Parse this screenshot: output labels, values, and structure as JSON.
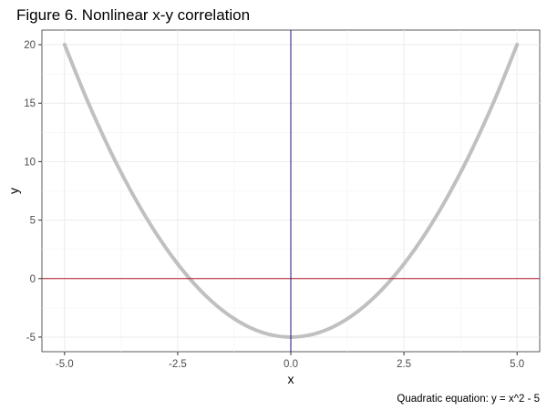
{
  "chart_data": {
    "type": "line",
    "title": "Figure 6. Nonlinear x-y correlation",
    "xlabel": "x",
    "ylabel": "y",
    "caption": "Quadratic equation: y = x^2 - 5",
    "xlim": [
      -5.5,
      5.5
    ],
    "ylim": [
      -6.25,
      21.25
    ],
    "x_ticks": [
      -5.0,
      -2.5,
      0.0,
      2.5,
      5.0
    ],
    "x_tick_labels": [
      "-5.0",
      "-2.5",
      "0.0",
      "2.5",
      "5.0"
    ],
    "y_ticks": [
      -5,
      0,
      5,
      10,
      15,
      20
    ],
    "y_tick_labels": [
      "-5",
      "0",
      "5",
      "10",
      "15",
      "20"
    ],
    "grid": true,
    "reference_lines": [
      {
        "orientation": "horizontal",
        "value": 0,
        "color": "#b2182b"
      },
      {
        "orientation": "vertical",
        "value": 0,
        "color": "#1a1a6e"
      }
    ],
    "series": [
      {
        "color": "#c0c0c0",
        "x": [
          -5.0,
          -4.5,
          -4.0,
          -3.5,
          -3.0,
          -2.5,
          -2.0,
          -1.5,
          -1.0,
          -0.5,
          0.0,
          0.5,
          1.0,
          1.5,
          2.0,
          2.5,
          3.0,
          3.5,
          4.0,
          4.5,
          5.0
        ],
        "y": [
          20.0,
          15.25,
          11.0,
          7.25,
          4.0,
          1.25,
          -1.0,
          -2.75,
          -4.0,
          -4.75,
          -5.0,
          -4.75,
          -4.0,
          -2.75,
          -1.0,
          1.25,
          4.0,
          7.25,
          11.0,
          15.25,
          20.0
        ]
      }
    ]
  }
}
